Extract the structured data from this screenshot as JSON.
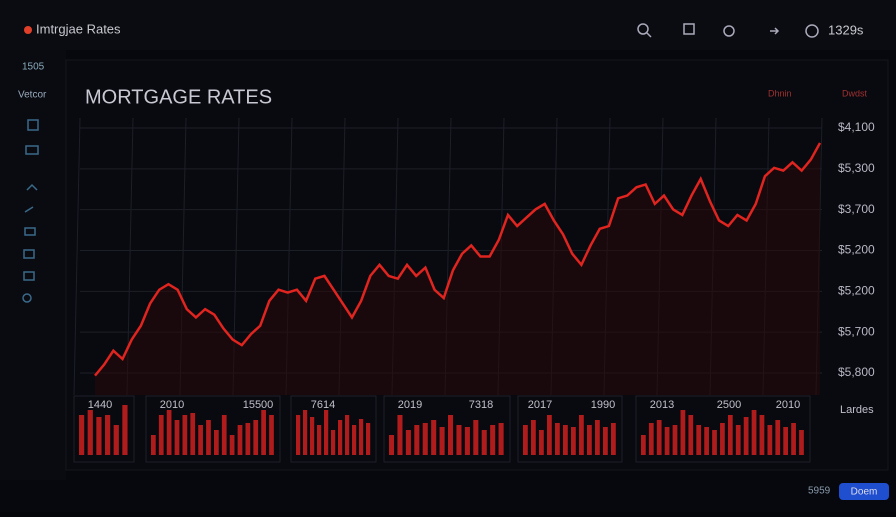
{
  "app": {
    "title": "Imtrgjae Rates",
    "clock": "1329s",
    "sidebar": {
      "count": "1505",
      "label": "Vetcor"
    },
    "status": "5959",
    "button": "Doem"
  },
  "chart_data": {
    "type": "line",
    "title": "MORTGAGE RATES",
    "controls": [
      "Dhnin",
      "Dwdst"
    ],
    "color": "#e0241f",
    "y_axis_labels": [
      "$4,100",
      "$5,300",
      "$3,700",
      "$5,200",
      "$5,200",
      "$5,700",
      "$5,800"
    ],
    "ylim": [
      0,
      100
    ],
    "values": [
      7,
      11,
      16,
      13,
      20,
      25,
      33,
      38,
      40,
      38,
      31,
      28,
      31,
      29,
      24,
      20,
      18,
      22,
      25,
      34,
      38,
      37,
      38,
      34,
      42,
      43,
      38,
      33,
      28,
      34,
      43,
      47,
      43,
      42,
      47,
      43,
      46,
      38,
      35,
      45,
      51,
      54,
      50,
      50,
      56,
      65,
      61,
      64,
      67,
      69,
      63,
      58,
      51,
      47,
      54,
      60,
      61,
      71,
      72,
      75,
      76,
      69,
      72,
      67,
      65,
      72,
      78,
      70,
      63,
      61,
      65,
      63,
      69,
      79,
      82,
      81,
      84,
      81,
      85,
      91
    ],
    "x_labels": [
      "1440",
      "2010",
      "15500",
      "7614",
      "2019",
      "7318",
      "2017",
      "1990",
      "2013",
      "2500",
      "2010"
    ],
    "legend": "Lardes",
    "bar_color": "#b01c1c",
    "bar_panels": [
      [
        40,
        45,
        38,
        40,
        30,
        50
      ],
      [
        20,
        40,
        45,
        35,
        40,
        42,
        30,
        35,
        25,
        40,
        20,
        30,
        32,
        35,
        45,
        40
      ],
      [
        40,
        45,
        38,
        30,
        45,
        25,
        35,
        40,
        30,
        36,
        32
      ],
      [
        20,
        40,
        25,
        30,
        32,
        35,
        28,
        40,
        30,
        28,
        35,
        25,
        30,
        32
      ],
      [
        30,
        35,
        25,
        40,
        32,
        30,
        28,
        40,
        30,
        35,
        28,
        32
      ],
      [
        20,
        32,
        35,
        28,
        30,
        45,
        40,
        30,
        28,
        25,
        32,
        40,
        30,
        38,
        45,
        40,
        30,
        35,
        28,
        32,
        25
      ]
    ]
  }
}
